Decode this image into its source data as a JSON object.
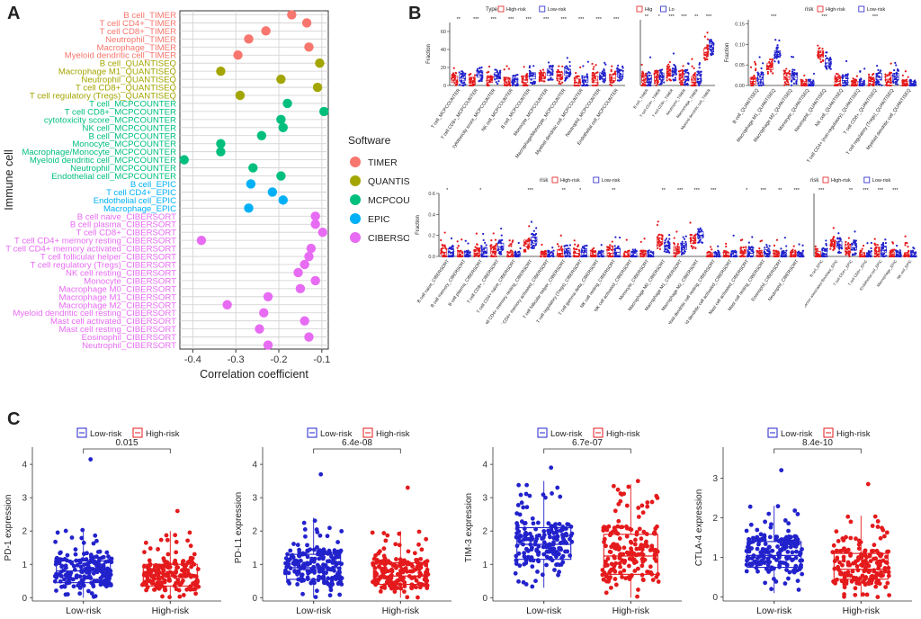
{
  "panels": {
    "a": "A",
    "b": "B",
    "c": "C"
  },
  "chart_data": [
    {
      "id": "A",
      "type": "scatter",
      "title": "",
      "xlabel": "Correlation coefficient",
      "ylabel": "Immune cell",
      "xlim": [
        -0.43,
        -0.085
      ],
      "xticks": [
        -0.4,
        -0.3,
        -0.2,
        -0.1
      ],
      "xtick_labels": [
        "-0.4",
        "-0.3",
        "-0.2",
        "-0.1"
      ],
      "legend_title": "Software",
      "legend": [
        {
          "name": "TIMER",
          "color": "#F8766D"
        },
        {
          "name": "QUANTISEQ",
          "color": "#A3A500"
        },
        {
          "name": "MCPCOUNTER",
          "color": "#00BF7D"
        },
        {
          "name": "EPIC",
          "color": "#00B0F6"
        },
        {
          "name": "CIBERSORT",
          "color": "#E76BF3"
        }
      ],
      "points": [
        {
          "label": "B cell_TIMER",
          "value": -0.17,
          "software": 0
        },
        {
          "label": "T cell CD4+_TIMER",
          "value": -0.135,
          "software": 0
        },
        {
          "label": "T cell CD8+_TIMER",
          "value": -0.23,
          "software": 0
        },
        {
          "label": "Neutrophil_TIMER",
          "value": -0.27,
          "software": 0
        },
        {
          "label": "Macrophage_TIMER",
          "value": -0.13,
          "software": 0
        },
        {
          "label": "Myeloid dendritic cell_TIMER",
          "value": -0.295,
          "software": 0
        },
        {
          "label": "B cell_QUANTISEQ",
          "value": -0.105,
          "software": 1
        },
        {
          "label": "Macrophage M1_QUANTISEQ",
          "value": -0.335,
          "software": 1
        },
        {
          "label": "Neutrophil_QUANTISEQ",
          "value": -0.195,
          "software": 1
        },
        {
          "label": "T cell CD8+_QUANTISEQ",
          "value": -0.11,
          "software": 1
        },
        {
          "label": "T cell regulatory (Tregs)_QUANTISEQ",
          "value": -0.29,
          "software": 1
        },
        {
          "label": "T cell_MCPCOUNTER",
          "value": -0.18,
          "software": 2
        },
        {
          "label": "T cell CD8+_MCPCOUNTER",
          "value": -0.095,
          "software": 2
        },
        {
          "label": "cytotoxicity score_MCPCOUNTER",
          "value": -0.195,
          "software": 2
        },
        {
          "label": "NK cell_MCPCOUNTER",
          "value": -0.19,
          "software": 2
        },
        {
          "label": "B cell_MCPCOUNTER",
          "value": -0.24,
          "software": 2
        },
        {
          "label": "Monocyte_MCPCOUNTER",
          "value": -0.335,
          "software": 2
        },
        {
          "label": "Macrophage/Monocyte_MCPCOUNTER",
          "value": -0.335,
          "software": 2
        },
        {
          "label": "Myeloid dendritic cell_MCPCOUNTER",
          "value": -0.42,
          "software": 2
        },
        {
          "label": "Neutrophil_MCPCOUNTER",
          "value": -0.26,
          "software": 2
        },
        {
          "label": "Endothelial cell_MCPCOUNTER",
          "value": -0.195,
          "software": 2
        },
        {
          "label": "B cell_EPIC",
          "value": -0.265,
          "software": 3
        },
        {
          "label": "T cell CD4+_EPIC",
          "value": -0.215,
          "software": 3
        },
        {
          "label": "Endothelial cell_EPIC",
          "value": -0.19,
          "software": 3
        },
        {
          "label": "Macrophage_EPIC",
          "value": -0.27,
          "software": 3
        },
        {
          "label": "B cell naive_CIBERSORT",
          "value": -0.115,
          "software": 4
        },
        {
          "label": "B cell plasma_CIBERSORT",
          "value": -0.115,
          "software": 4
        },
        {
          "label": "T cell CD8+_CIBERSORT",
          "value": -0.098,
          "software": 4
        },
        {
          "label": "T cell CD4+ memory resting_CIBERSORT",
          "value": -0.38,
          "software": 4
        },
        {
          "label": "T cell CD4+ memory activated_CIBERSORT",
          "value": -0.125,
          "software": 4
        },
        {
          "label": "T cell follicular helper_CIBERSORT",
          "value": -0.13,
          "software": 4
        },
        {
          "label": "T cell regulatory (Tregs)_CIBERSORT",
          "value": -0.14,
          "software": 4
        },
        {
          "label": "NK cell resting_CIBERSORT",
          "value": -0.155,
          "software": 4
        },
        {
          "label": "Monocyte_CIBERSORT",
          "value": -0.115,
          "software": 4
        },
        {
          "label": "Macrophage M0_CIBERSORT",
          "value": -0.15,
          "software": 4
        },
        {
          "label": "Macrophage M1_CIBERSORT",
          "value": -0.225,
          "software": 4
        },
        {
          "label": "Macrophage M2_CIBERSORT",
          "value": -0.32,
          "software": 4
        },
        {
          "label": "Myeloid dendritic cell resting_CIBERSORT",
          "value": -0.235,
          "software": 4
        },
        {
          "label": "Mast cell activated_CIBERSORT",
          "value": -0.14,
          "software": 4
        },
        {
          "label": "Mast cell resting_CIBERSORT",
          "value": -0.245,
          "software": 4
        },
        {
          "label": "Eosinophil_CIBERSORT",
          "value": -0.13,
          "software": 4
        },
        {
          "label": "Neutrophil_CIBERSORT",
          "value": -0.225,
          "software": 4
        }
      ]
    },
    {
      "id": "B1",
      "type": "box",
      "legend_title": "Type",
      "legend": [
        "High-risk",
        "Low-risk"
      ],
      "ylabel": "Fraction",
      "ylim": [
        0,
        70
      ],
      "yticks": [
        0,
        20,
        40,
        60
      ],
      "categories": [
        "T cell_MCPCOUNTER",
        "T cell CD8+_MCPCOUNTER",
        "cytotoxicity score_MCPCOUNTER",
        "NK cell_MCPCOUNTER",
        "B cell_MCPCOUNTER",
        "Monocyte_MCPCOUNTER",
        "Macrophage/Monocyte_MCPCOUNTER",
        "Myeloid dendritic cell_MCPCOUNTER",
        "Neutrophil_MCPCOUNTER",
        "Endothelial cell_MCPCOUNTER"
      ],
      "significance": [
        "**",
        "***",
        "***",
        "***",
        "***",
        "***",
        "***",
        "***",
        "***",
        "***"
      ],
      "series": [
        {
          "name": "High-risk",
          "medians": [
            6,
            5,
            6,
            2,
            6,
            10,
            10,
            3,
            6,
            8
          ]
        },
        {
          "name": "Low-risk",
          "medians": [
            8,
            12,
            10,
            4,
            10,
            14,
            14,
            6,
            10,
            12
          ]
        }
      ]
    },
    {
      "id": "B2",
      "type": "box",
      "legend": [
        "Hig",
        "Lo"
      ],
      "ylim": [
        0,
        1
      ],
      "categories": [
        "B cell_TIMER",
        "T cell CD4+_TIMER",
        "T cell CD8+_TIMER",
        "Neutrophil_TIMER",
        "Macrophage_TIMER",
        "Myeloid dendritic cell_TIMER"
      ],
      "significance": [
        "**",
        "*",
        "***",
        "***",
        "**",
        "***"
      ],
      "series": [
        {
          "name": "High-risk",
          "medians": [
            0.08,
            0.12,
            0.18,
            0.12,
            0.08,
            0.5
          ]
        },
        {
          "name": "Low-risk",
          "medians": [
            0.1,
            0.13,
            0.2,
            0.13,
            0.1,
            0.58
          ]
        }
      ]
    },
    {
      "id": "B3",
      "type": "box",
      "legend_title": "risk",
      "legend": [
        "High-risk",
        "Low-risk"
      ],
      "ylabel": "Fraction",
      "ylim": [
        0,
        0.16
      ],
      "yticks": [
        0,
        0.05,
        0.1,
        0.15
      ],
      "ytick_labels": [
        "0.00",
        "0.05",
        "0.10",
        "0.15"
      ],
      "categories": [
        "B cell_QUANTISEQ",
        "Macrophage M1_QUANTISEQ",
        "Macrophage M2_QUANTISEQ",
        "Monocyte_QUANTISEQ",
        "Neutrophil_QUANTISEQ",
        "NK cell_QUANTISEQ",
        "T cell CD4+ (non-regulatory)_QUANTISEQ",
        "T cell CD8+_QUANTISEQ",
        "T cell regulatory (Tregs)_QUANTISEQ",
        "Myeloid dendritic cell_QUANTISEQ"
      ],
      "significance": [
        "",
        "***",
        "",
        "",
        "***",
        "",
        "",
        "***",
        "",
        ""
      ],
      "series": [
        {
          "name": "High-risk",
          "medians": [
            0.01,
            0.045,
            0.02,
            0.0,
            0.075,
            0.01,
            0.0,
            0.01,
            0.015,
            0.0
          ]
        },
        {
          "name": "Low-risk",
          "medians": [
            0.015,
            0.075,
            0.02,
            0.0,
            0.055,
            0.012,
            0.0,
            0.02,
            0.02,
            0.0
          ]
        }
      ]
    },
    {
      "id": "B4",
      "type": "box",
      "legend_title": "risk",
      "legend": [
        "High-risk",
        "Low-risk"
      ],
      "ylabel": "Fraction",
      "ylim": [
        0,
        0.6
      ],
      "yticks": [
        0,
        0.2,
        0.4,
        0.6
      ],
      "ytick_labels": [
        "0.0",
        "0.2",
        "0.4",
        "0.6"
      ],
      "categories": [
        "B cell naive_CIBERSORT",
        "B cell memory_CIBERSORT",
        "B cell plasma_CIBERSORT",
        "T cell CD8+_CIBERSORT",
        "T cell CD4+ naive_CIBERSORT",
        "T cell CD4+ memory resting_CIBERSORT",
        "T cell CD4+ memory activated_CIBERSORT",
        "T cell follicular helper_CIBERSORT",
        "T cell regulatory (Tregs)_CIBERSORT",
        "T cell gamma delta_CIBERSORT",
        "NK cell resting_CIBERSORT",
        "NK cell activated_CIBERSORT",
        "Monocyte_CIBERSORT",
        "Macrophage M0_CIBERSORT",
        "Macrophage M1_CIBERSORT",
        "Macrophage M2_CIBERSORT",
        "Myeloid dendritic cell resting_CIBERSORT",
        "Myeloid dendritic cell activated_CIBERSORT",
        "Mast cell activated_CIBERSORT",
        "Mast cell resting_CIBERSORT",
        "Eosinophil_CIBERSORT",
        "Neutrophil_CIBERSORT"
      ],
      "significance": [
        "*",
        "",
        "*",
        "",
        "",
        "***",
        "",
        "**",
        "*",
        "",
        "**",
        "",
        "",
        "**",
        "***",
        "***",
        "***",
        "",
        "*",
        "***",
        "**",
        "***"
      ],
      "series": [
        {
          "name": "High-risk",
          "medians": [
            0.04,
            0.0,
            0.03,
            0.05,
            0.0,
            0.12,
            0.0,
            0.03,
            0.03,
            0.0,
            0.03,
            0.0,
            0.0,
            0.14,
            0.06,
            0.15,
            0.0,
            0.0,
            0.05,
            0.0,
            0.0,
            0.0
          ]
        },
        {
          "name": "Low-risk",
          "medians": [
            0.04,
            0.0,
            0.05,
            0.09,
            0.0,
            0.15,
            0.0,
            0.04,
            0.04,
            0.0,
            0.04,
            0.0,
            0.0,
            0.1,
            0.09,
            0.2,
            0.0,
            0.0,
            0.03,
            0.03,
            0.0,
            0.0
          ]
        }
      ]
    },
    {
      "id": "B5",
      "type": "box",
      "legend_title": "risk",
      "legend": [
        "High-risk",
        "Low-risk"
      ],
      "ylim": [
        0,
        1
      ],
      "categories": [
        "B cell_EPIC",
        "Cancer associated fibroblast_EPIC",
        "T cell CD4+_EPIC",
        "T cell CD8+_EPIC",
        "Endothelial cell_EPIC",
        "Macrophage_EPIC",
        "NK cell_EPIC"
      ],
      "significance": [
        "***",
        "",
        "**",
        "***",
        "***",
        "***",
        ""
      ],
      "series": [
        {
          "name": "High-risk",
          "medians": [
            0.02,
            0.2,
            0.12,
            0.0,
            0.08,
            0.01,
            0.0
          ]
        },
        {
          "name": "Low-risk",
          "medians": [
            0.03,
            0.18,
            0.14,
            0.0,
            0.1,
            0.015,
            0.0
          ]
        }
      ]
    },
    {
      "id": "C1",
      "type": "box",
      "ylabel": "PD-1 expression",
      "categories": [
        "Low-risk",
        "High-risk"
      ],
      "legend": [
        "Low-risk",
        "High-risk"
      ],
      "pvalue": "0.015",
      "ylim": [
        -0.1,
        4.3
      ],
      "yticks": [
        0,
        1,
        2,
        3,
        4
      ],
      "ytick_labels": [
        "0",
        "1",
        "2",
        "3",
        "4"
      ],
      "boxes": [
        {
          "name": "Low-risk",
          "q1": 0.45,
          "median": 0.8,
          "q3": 1.1,
          "whisker_low": 0.0,
          "whisker_high": 2.05,
          "max": 4.15
        },
        {
          "name": "High-risk",
          "q1": 0.35,
          "median": 0.65,
          "q3": 1.0,
          "whisker_low": 0.0,
          "whisker_high": 2.0,
          "max": 2.6
        }
      ]
    },
    {
      "id": "C2",
      "type": "box",
      "ylabel": "PD-L1 expression",
      "categories": [
        "Low-risk",
        "High-risk"
      ],
      "legend": [
        "Low-risk",
        "High-risk"
      ],
      "pvalue": "6.4e-08",
      "ylim": [
        -0.1,
        4.3
      ],
      "yticks": [
        0,
        1,
        2,
        3,
        4
      ],
      "ytick_labels": [
        "0",
        "1",
        "2",
        "3",
        "4"
      ],
      "boxes": [
        {
          "name": "Low-risk",
          "q1": 0.55,
          "median": 0.9,
          "q3": 1.3,
          "whisker_low": 0.0,
          "whisker_high": 2.4,
          "max": 3.7
        },
        {
          "name": "High-risk",
          "q1": 0.4,
          "median": 0.65,
          "q3": 1.05,
          "whisker_low": 0.0,
          "whisker_high": 2.0,
          "max": 3.3
        }
      ]
    },
    {
      "id": "C3",
      "type": "box",
      "ylabel": "TIM-3 expression",
      "categories": [
        "Low-risk",
        "High-risk"
      ],
      "legend": [
        "Low-risk",
        "High-risk"
      ],
      "pvalue": "6.7e-07",
      "ylim": [
        -0.1,
        4.3
      ],
      "yticks": [
        0,
        1,
        2,
        3,
        4
      ],
      "ytick_labels": [
        "0",
        "1",
        "2",
        "3",
        "4"
      ],
      "boxes": [
        {
          "name": "Low-risk",
          "q1": 1.15,
          "median": 1.6,
          "q3": 2.1,
          "whisker_low": 0.3,
          "whisker_high": 3.5,
          "max": 3.9
        },
        {
          "name": "High-risk",
          "q1": 0.7,
          "median": 1.25,
          "q3": 1.9,
          "whisker_low": 0.0,
          "whisker_high": 3.4,
          "max": 3.5
        }
      ]
    },
    {
      "id": "C4",
      "type": "box",
      "ylabel": "CTLA-4 expression",
      "categories": [
        "Low-risk",
        "High-risk"
      ],
      "legend": [
        "Low-risk",
        "High-risk"
      ],
      "pvalue": "8.4e-10",
      "ylim": [
        -0.1,
        3.6
      ],
      "yticks": [
        0,
        1,
        2,
        3
      ],
      "ytick_labels": [
        "0",
        "1",
        "2",
        "3"
      ],
      "boxes": [
        {
          "name": "Low-risk",
          "q1": 0.75,
          "median": 1.05,
          "q3": 1.4,
          "whisker_low": 0.1,
          "whisker_high": 2.3,
          "max": 3.2
        },
        {
          "name": "High-risk",
          "q1": 0.45,
          "median": 0.7,
          "q3": 1.1,
          "whisker_low": 0.0,
          "whisker_high": 2.05,
          "max": 2.85
        }
      ]
    }
  ],
  "colors": {
    "timer": "#F8766D",
    "quantiseq": "#A3A500",
    "mcp": "#00BF7D",
    "epic": "#00B0F6",
    "cibersort": "#E76BF3",
    "high": "#E41A1C",
    "low": "#2222CC"
  }
}
